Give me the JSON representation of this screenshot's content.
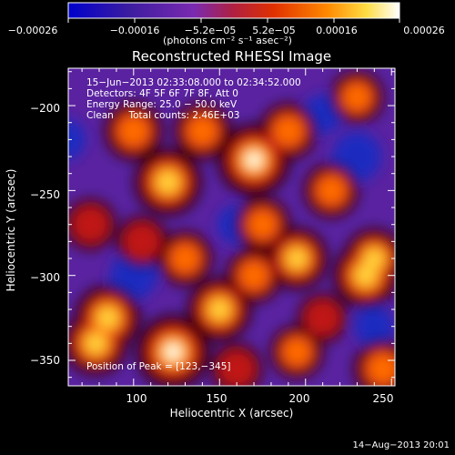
{
  "chart_data": {
    "type": "heatmap",
    "title": "Reconstructed RHESSI Image",
    "xlabel": "Heliocentric X (arcsec)",
    "ylabel": "Heliocentric Y (arcsec)",
    "xlim": [
      62,
      252
    ],
    "ylim": [
      -365,
      -178
    ],
    "xticks": [
      100,
      150,
      200,
      250
    ],
    "xtick_labels": [
      "100",
      "150",
      "200",
      "250"
    ],
    "yticks": [
      -200,
      -250,
      -300,
      -350
    ],
    "ytick_labels": [
      "−200",
      "−250",
      "−300",
      "−350"
    ],
    "colorbar": {
      "range": [
        -0.00026,
        0.00026
      ],
      "ticks": [
        -0.00026,
        -0.00016,
        -5.2e-05,
        5.2e-05,
        0.00016,
        0.00026
      ],
      "tick_labels": [
        "−0.00026",
        "−0.00016",
        "−5.2e−05",
        "5.2e−05",
        "0.00016",
        "0.00026"
      ],
      "unit_text": "(photons cm⁻² s⁻¹ asec⁻²)",
      "colors": [
        "#0000cc",
        "#3b1ca0",
        "#7a2ab0",
        "#b02040",
        "#e03000",
        "#ff8800",
        "#ffdd44",
        "#ffffff"
      ]
    },
    "annotations": [
      "15−Jun−2013 02:33:08.000 to 02:34:52.000",
      "Detectors: 4F 5F 6F 7F 8F, Att 0",
      "Energy Range: 25.0 − 50.0 keV",
      "Clean     Total counts: 2.46E+03"
    ],
    "peak_label": "Position of Peak = [123,−345]",
    "peak": [
      123,
      -345
    ],
    "blobs": [
      {
        "x": 123,
        "y": -345,
        "v": 1.0
      },
      {
        "x": 170,
        "y": -232,
        "v": 0.95
      },
      {
        "x": 120,
        "y": -245,
        "v": 0.8
      },
      {
        "x": 85,
        "y": -325,
        "v": 0.75
      },
      {
        "x": 78,
        "y": -340,
        "v": 0.7
      },
      {
        "x": 150,
        "y": -320,
        "v": 0.7
      },
      {
        "x": 195,
        "y": -290,
        "v": 0.65
      },
      {
        "x": 235,
        "y": -300,
        "v": 0.75
      },
      {
        "x": 240,
        "y": -290,
        "v": 0.6
      },
      {
        "x": 100,
        "y": -215,
        "v": 0.55
      },
      {
        "x": 190,
        "y": -215,
        "v": 0.5
      },
      {
        "x": 140,
        "y": -215,
        "v": 0.5
      },
      {
        "x": 175,
        "y": -270,
        "v": 0.45
      },
      {
        "x": 215,
        "y": -250,
        "v": 0.45
      },
      {
        "x": 245,
        "y": -355,
        "v": 0.55
      },
      {
        "x": 130,
        "y": -290,
        "v": 0.45
      },
      {
        "x": 195,
        "y": -345,
        "v": 0.4
      },
      {
        "x": 170,
        "y": -300,
        "v": 0.45
      },
      {
        "x": 105,
        "y": -280,
        "v": 0.35
      },
      {
        "x": 230,
        "y": -195,
        "v": 0.4
      },
      {
        "x": 75,
        "y": -270,
        "v": 0.35
      },
      {
        "x": 160,
        "y": -355,
        "v": 0.35
      },
      {
        "x": 210,
        "y": -325,
        "v": 0.3
      }
    ],
    "troughs": [
      {
        "x": 230,
        "y": -230,
        "v": 0.9
      },
      {
        "x": 100,
        "y": -300,
        "v": 0.8
      },
      {
        "x": 60,
        "y": -220,
        "v": 0.5
      },
      {
        "x": 160,
        "y": -270,
        "v": 0.35
      },
      {
        "x": 240,
        "y": -330,
        "v": 0.4
      },
      {
        "x": 210,
        "y": -205,
        "v": 0.35
      }
    ]
  },
  "timestamp": "14−Aug−2013 20:01"
}
